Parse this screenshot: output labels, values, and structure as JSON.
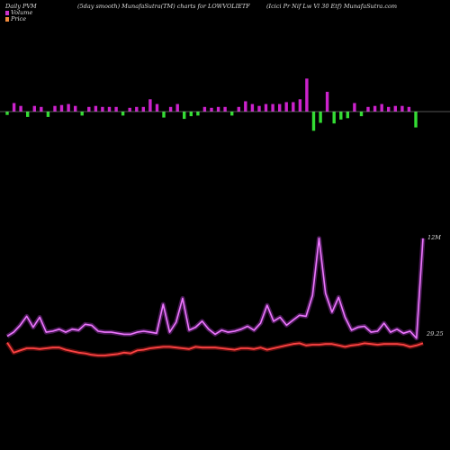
{
  "header": {
    "left": "Daily PVM",
    "middle": "(5day smooth) MunafaSutra(TM) charts for LOWVOLIETF",
    "right": "(Icici  Pr Nif  Lw  Vl 30  Etf) MunafaSutra.com"
  },
  "legend": {
    "volume_label": "Volume",
    "price_label": "Price",
    "volume_color": "#cc33cc",
    "price_color": "#f08a3c"
  },
  "colors": {
    "background": "#000000",
    "volume_up": "#cc22cc",
    "volume_down": "#33dd33",
    "volume_line": "#cc44ee",
    "price_line": "#ee2222",
    "baseline": "#aaaaaa"
  },
  "chart_data": {
    "type": "line",
    "title": "(5day smooth) MunafaSutra(TM) charts for LOWVOLIETF",
    "ylim": [
      0,
      12
    ],
    "annotations": [
      "12M",
      "29.25"
    ],
    "volume_bars": {
      "values": [
        0.5,
        0.9,
        0.6,
        0.8,
        0.6,
        0.5,
        0.8,
        0.6,
        0.7,
        0.8,
        0.6,
        0.6,
        0.5,
        0.6,
        0.5,
        0.5,
        0.5,
        0.6,
        0.4,
        0.5,
        0.5,
        1.3,
        0.8,
        0.9,
        0.5,
        0.8,
        1.1,
        0.7,
        0.6,
        0.5,
        0.4,
        0.5,
        0.5,
        0.6,
        0.5,
        1.1,
        0.8,
        0.6,
        0.8,
        0.8,
        0.8,
        1.0,
        1.0,
        1.3,
        3.5,
        2.9,
        1.7,
        2.1,
        1.8,
        1.2,
        1.0,
        0.9,
        0.7,
        0.5,
        0.6,
        0.8,
        0.5,
        0.6,
        0.6,
        0.5,
        2.4
      ],
      "direction": [
        "down",
        "up",
        "up",
        "down",
        "up",
        "up",
        "down",
        "up",
        "up",
        "up",
        "up",
        "down",
        "up",
        "up",
        "up",
        "up",
        "up",
        "down",
        "up",
        "up",
        "up",
        "up",
        "up",
        "down",
        "up",
        "up",
        "down",
        "down",
        "down",
        "up",
        "up",
        "up",
        "up",
        "down",
        "up",
        "up",
        "up",
        "up",
        "up",
        "up",
        "up",
        "up",
        "up",
        "up",
        "up",
        "down",
        "down",
        "up",
        "down",
        "down",
        "down",
        "up",
        "down",
        "up",
        "up",
        "up",
        "up",
        "up",
        "up",
        "up",
        "down"
      ]
    },
    "series": [
      {
        "values": [
          2.2,
          2.6,
          3.3,
          4.2,
          3.1,
          4.1,
          2.6,
          2.7,
          2.9,
          2.6,
          2.9,
          2.8,
          3.4,
          3.3,
          2.7,
          2.6,
          2.6,
          2.5,
          2.4,
          2.4,
          2.6,
          2.7,
          2.6,
          2.5,
          5.4,
          2.6,
          3.6,
          6.0,
          2.8,
          3.1,
          3.7,
          2.9,
          2.4,
          2.8,
          2.6,
          2.7,
          2.9,
          3.2,
          2.8,
          3.5,
          5.3,
          3.7,
          4.1,
          3.3,
          3.8,
          4.3,
          4.2,
          6.3,
          12.0,
          6.5,
          4.6,
          6.1,
          4.1,
          2.8,
          3.1,
          3.2,
          2.6,
          2.7,
          3.5,
          2.6,
          2.9,
          2.5,
          2.7,
          2.0,
          12.0
        ]
      },
      {
        "values": [
          29.3,
          28.6,
          28.75,
          28.9,
          28.9,
          28.85,
          28.9,
          28.95,
          28.95,
          28.8,
          28.7,
          28.6,
          28.55,
          28.45,
          28.4,
          28.4,
          28.45,
          28.5,
          28.6,
          28.55,
          28.75,
          28.8,
          28.9,
          28.95,
          29.0,
          29.0,
          28.95,
          28.9,
          28.85,
          29.0,
          28.95,
          28.95,
          28.95,
          28.9,
          28.85,
          28.8,
          28.9,
          28.9,
          28.85,
          28.95,
          28.8,
          28.9,
          29.0,
          29.1,
          29.2,
          29.25,
          29.1,
          29.15,
          29.15,
          29.2,
          29.2,
          29.1,
          29.0,
          29.1,
          29.15,
          29.25,
          29.2,
          29.15,
          29.2,
          29.2,
          29.2,
          29.15,
          29.0,
          29.1,
          29.25
        ]
      }
    ]
  }
}
